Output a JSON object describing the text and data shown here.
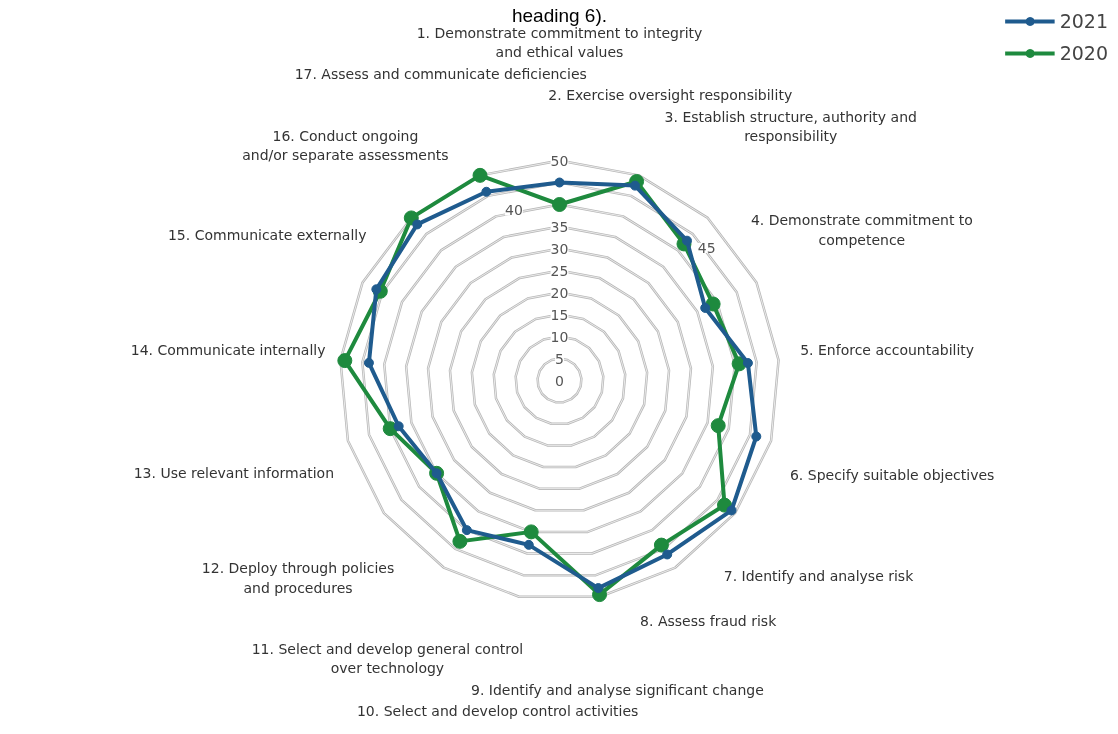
{
  "chart_data": {
    "type": "radar",
    "title": "heading 6).",
    "categories": [
      "1. Demonstrate commitment to integrity\nand ethical values",
      "2. Exercise oversight responsibility",
      "3. Establish structure, authority and\nresponsibility",
      "4. Demonstrate commitment to\ncompetence",
      "5. Enforce accountability",
      "6. Specify suitable objectives",
      "7. Identify and analyse risk",
      "8. Assess fraud risk",
      "9. Identify and analyse significant change",
      "10. Select and develop control activities",
      "11. Select and develop general control\nover technology",
      "12. Deploy through policies\nand procedures",
      "13. Use relevant information",
      "14. Communicate internally",
      "15. Communicate externally",
      "16. Conduct ongoing\nand/or separate assessments",
      "17. Assess and communicate deficiencies"
    ],
    "series": [
      {
        "name": "2021",
        "color": "#1f5b8e",
        "values": [
          45,
          47.5,
          43,
          37,
          43,
          46.5,
          49,
          46.5,
          48,
          38,
          40,
          35,
          38,
          43.5,
          46.5,
          48,
          46
        ]
      },
      {
        "name": "2020",
        "color": "#1e8a3e",
        "values": [
          40,
          48.5,
          42,
          39,
          41,
          37.5,
          47,
          44,
          49.5,
          35,
          43,
          35,
          40,
          49,
          45.5,
          50,
          50
        ]
      }
    ],
    "ylim": [
      0,
      50
    ],
    "yticks": [
      0,
      5,
      10,
      15,
      20,
      25,
      30,
      35,
      40,
      45,
      50
    ],
    "grid": true,
    "legend": "top right",
    "marker": "circle",
    "line_style": "solid"
  }
}
